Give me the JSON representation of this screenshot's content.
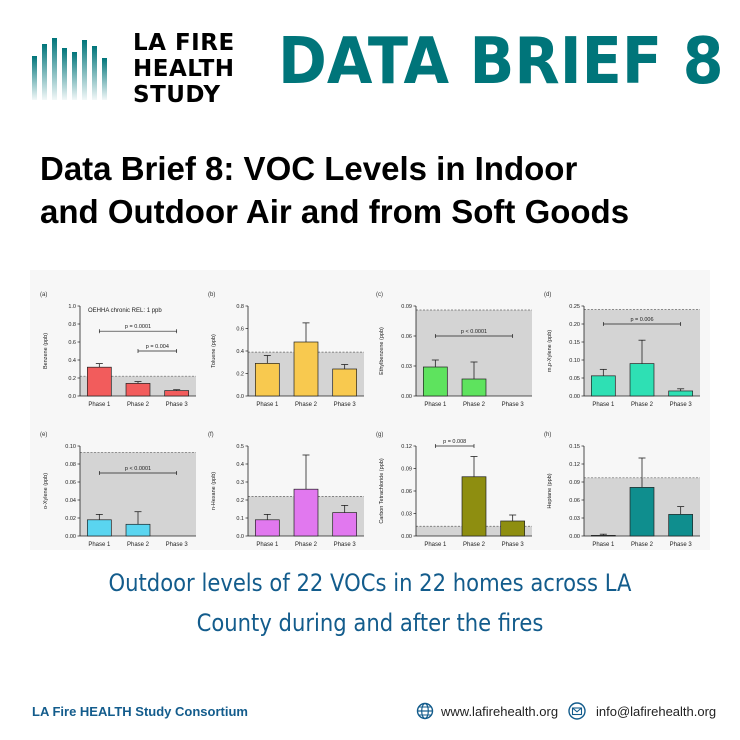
{
  "header": {
    "logo_lines": [
      "LA FIRE",
      "HEALTH",
      "STUDY"
    ],
    "brief_title": "DATA BRIEF 8"
  },
  "headline": {
    "line1": "Data Brief 8: VOC Levels in Indoor",
    "line2": "and Outdoor Air and from Soft Goods"
  },
  "subtitle": {
    "line1": "Outdoor levels of 22 VOCs in 22 homes across LA",
    "line2": "County during and after the fires"
  },
  "footer": {
    "consortium": "LA Fire HEALTH Study Consortium",
    "website": "www.lafirehealth.org",
    "email": "info@lafirehealth.org",
    "website_icon": "globe-icon",
    "email_icon": "envelope-icon"
  },
  "colors": {
    "brand_teal": "#00757a",
    "subtitle_blue": "#135c8c",
    "reference_band": "#d4d4d4"
  },
  "chart_data": [
    {
      "type": "bar",
      "panel": "(a)",
      "ylabel": "Benzene (ppb)",
      "ylim": [
        0,
        1.0
      ],
      "yticks": [
        0,
        0.2,
        0.4,
        0.6,
        0.8,
        1.0
      ],
      "tick_labels": [
        "0.0",
        "0.2",
        "0.4",
        "0.6",
        "0.8",
        "1.0"
      ],
      "categories": [
        "Phase 1",
        "Phase 2",
        "Phase 3"
      ],
      "values": [
        0.32,
        0.14,
        0.06
      ],
      "errors": [
        0.04,
        0.02,
        0.01
      ],
      "bar_color": "#f25c5c",
      "reference": 0.22,
      "reference_label": "OEHHA chronic REL: 1 ppb",
      "annotations": [
        {
          "from": 0,
          "to": 2,
          "text": "p = 0.0001",
          "y": 0.72
        },
        {
          "from": 1,
          "to": 2,
          "text": "p = 0.004",
          "y": 0.5
        }
      ]
    },
    {
      "type": "bar",
      "panel": "(b)",
      "ylabel": "Toluene (ppb)",
      "ylim": [
        0,
        0.8
      ],
      "yticks": [
        0,
        0.2,
        0.4,
        0.6,
        0.8
      ],
      "tick_labels": [
        "0.0",
        "0.2",
        "0.4",
        "0.6",
        "0.8"
      ],
      "categories": [
        "Phase 1",
        "Phase 2",
        "Phase 3"
      ],
      "values": [
        0.29,
        0.48,
        0.24
      ],
      "errors": [
        0.07,
        0.17,
        0.04
      ],
      "bar_color": "#f8c94f",
      "reference": 0.39,
      "annotations": []
    },
    {
      "type": "bar",
      "panel": "(c)",
      "ylabel": "Ethylbenzene (ppb)",
      "ylim": [
        0,
        0.09
      ],
      "yticks": [
        0,
        0.03,
        0.06,
        0.09
      ],
      "tick_labels": [
        "0.00",
        "0.03",
        "0.06",
        "0.09"
      ],
      "categories": [
        "Phase 1",
        "Phase 2",
        "Phase 3"
      ],
      "values": [
        0.029,
        0.017,
        0.0
      ],
      "errors": [
        0.007,
        0.017,
        0.0
      ],
      "bar_color": "#5ee35e",
      "reference": 0.086,
      "annotations": [
        {
          "from": 0,
          "to": 2,
          "text": "p < 0.0001",
          "y": 0.06
        }
      ]
    },
    {
      "type": "bar",
      "panel": "(d)",
      "ylabel": "m,p-Xylene (ppb)",
      "ylim": [
        0,
        0.25
      ],
      "yticks": [
        0,
        0.05,
        0.1,
        0.15,
        0.2,
        0.25
      ],
      "tick_labels": [
        "0.00",
        "0.05",
        "0.10",
        "0.15",
        "0.20",
        "0.25"
      ],
      "categories": [
        "Phase 1",
        "Phase 2",
        "Phase 3"
      ],
      "values": [
        0.056,
        0.09,
        0.014
      ],
      "errors": [
        0.018,
        0.065,
        0.006
      ],
      "bar_color": "#2ee0b4",
      "reference": 0.24,
      "annotations": [
        {
          "from": 0,
          "to": 2,
          "text": "p = 0.006",
          "y": 0.2
        }
      ]
    },
    {
      "type": "bar",
      "panel": "(e)",
      "ylabel": "o-Xylene (ppb)",
      "ylim": [
        0,
        0.1
      ],
      "yticks": [
        0,
        0.02,
        0.04,
        0.06,
        0.08,
        0.1
      ],
      "tick_labels": [
        "0.00",
        "0.02",
        "0.04",
        "0.06",
        "0.08",
        "0.10"
      ],
      "categories": [
        "Phase 1",
        "Phase 2",
        "Phase 3"
      ],
      "values": [
        0.018,
        0.013,
        0.0
      ],
      "errors": [
        0.006,
        0.014,
        0.0
      ],
      "bar_color": "#5ad5f0",
      "reference": 0.093,
      "annotations": [
        {
          "from": 0,
          "to": 2,
          "text": "p < 0.0001",
          "y": 0.07
        }
      ]
    },
    {
      "type": "bar",
      "panel": "(f)",
      "ylabel": "n-Hexane (ppb)",
      "ylim": [
        0,
        0.5
      ],
      "yticks": [
        0,
        0.1,
        0.2,
        0.3,
        0.4,
        0.5
      ],
      "tick_labels": [
        "0.0",
        "0.1",
        "0.2",
        "0.3",
        "0.4",
        "0.5"
      ],
      "categories": [
        "Phase 1",
        "Phase 2",
        "Phase 3"
      ],
      "values": [
        0.09,
        0.26,
        0.13
      ],
      "errors": [
        0.03,
        0.19,
        0.04
      ],
      "bar_color": "#e178ef",
      "reference": 0.22,
      "annotations": []
    },
    {
      "type": "bar",
      "panel": "(g)",
      "ylabel": "Carbon Tetrachloride (ppb)",
      "ylim": [
        0,
        0.12
      ],
      "yticks": [
        0,
        0.03,
        0.06,
        0.09,
        0.12
      ],
      "tick_labels": [
        "0.00",
        "0.03",
        "0.06",
        "0.09",
        "0.12"
      ],
      "categories": [
        "Phase 1",
        "Phase 2",
        "Phase 3"
      ],
      "values": [
        0.0,
        0.079,
        0.02
      ],
      "errors": [
        0.0,
        0.027,
        0.008
      ],
      "bar_color": "#8e8e10",
      "reference": 0.013,
      "annotations": [
        {
          "from": 0,
          "to": 1,
          "text": "p = 0.008",
          "y": 0.12
        }
      ]
    },
    {
      "type": "bar",
      "panel": "(h)",
      "ylabel": "Heptane (ppb)",
      "ylim": [
        0,
        0.15
      ],
      "yticks": [
        0,
        0.03,
        0.06,
        0.09,
        0.12,
        0.15
      ],
      "tick_labels": [
        "0.00",
        "0.03",
        "0.06",
        "0.09",
        "0.12",
        "0.15"
      ],
      "categories": [
        "Phase 1",
        "Phase 2",
        "Phase 3"
      ],
      "values": [
        0.001,
        0.081,
        0.036
      ],
      "errors": [
        0.002,
        0.049,
        0.013
      ],
      "bar_color": "#0f8e8e",
      "reference": 0.097,
      "annotations": []
    }
  ]
}
